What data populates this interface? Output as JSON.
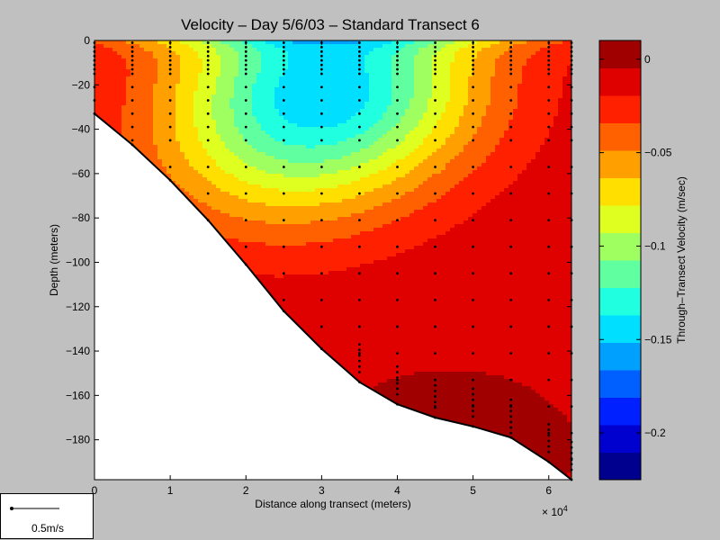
{
  "chart_data": {
    "type": "contour",
    "title": "Velocity – Day 5/6/03 – Standard Transect 6",
    "xlabel": "Distance along transect (meters)",
    "ylabel": "Depth (meters)",
    "x_multiplier_label": "× 10",
    "x_multiplier_exp": "4",
    "xlim": [
      0,
      6.3
    ],
    "ylim": [
      -198,
      0
    ],
    "x_ticks": [
      "0",
      "1",
      "2",
      "3",
      "4",
      "5",
      "6"
    ],
    "y_ticks": [
      "0",
      "−20",
      "−40",
      "−60",
      "−80",
      "−100",
      "−120",
      "−140",
      "−160",
      "−180"
    ],
    "y_tick_values": [
      0,
      -20,
      -40,
      -60,
      -80,
      -100,
      -120,
      -140,
      -160,
      -180
    ],
    "bottom_profile": {
      "x": [
        0,
        0.5,
        1,
        1.5,
        2,
        2.5,
        3,
        3.5,
        4,
        4.5,
        5,
        5.5,
        6,
        6.3
      ],
      "depth": [
        -33,
        -47,
        -63,
        -81,
        -101,
        -122,
        -139,
        -154,
        -164,
        -170,
        -174,
        -179,
        -190,
        -198
      ]
    },
    "station_x": [
      0,
      0.5,
      1,
      1.5,
      2,
      2.5,
      3,
      3.5,
      4,
      4.5,
      5,
      5.5,
      6,
      6.3
    ],
    "colorbar": {
      "label": "Through–Transect Velocity (m/sec)",
      "range": [
        -0.225,
        0.01
      ],
      "tick_values": [
        0,
        -0.05,
        -0.1,
        -0.15,
        -0.2
      ],
      "tick_labels": [
        "0",
        "−0.05",
        "−0.1",
        "−0.15",
        "−0.2"
      ],
      "colors": [
        "#00008f",
        "#0000cf",
        "#0020ff",
        "#0060ff",
        "#00a0ff",
        "#00dfff",
        "#20ffdf",
        "#60ffa0",
        "#a0ff60",
        "#dfff20",
        "#ffdf00",
        "#ffa000",
        "#ff6000",
        "#ff2000",
        "#df0000",
        "#a00000"
      ]
    },
    "contour_levels_min": [
      -0.215,
      -0.2,
      -0.185,
      -0.17,
      -0.155,
      -0.14,
      -0.125,
      -0.11,
      -0.095,
      -0.08,
      -0.065,
      -0.05,
      -0.035,
      -0.02,
      -0.005
    ],
    "velocity_field_notes": "core min about -0.14 near x=3, depth -20; max about +0.01 near bottom at x=4.5"
  },
  "scale_legend": {
    "label": "0.5m/s"
  }
}
